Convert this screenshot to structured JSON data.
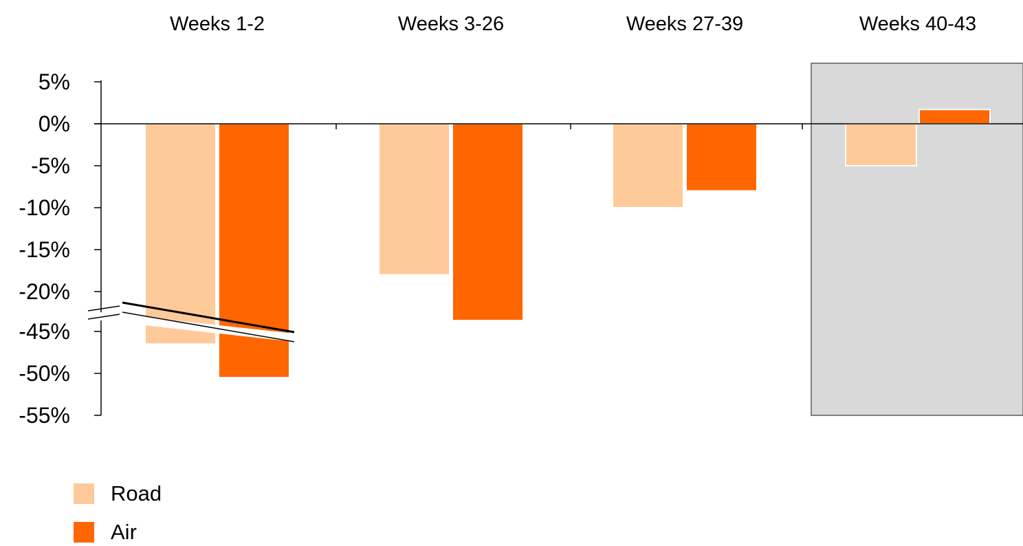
{
  "chart_data": {
    "type": "bar",
    "categories": [
      "Weeks 1-2",
      "Weeks 3-26",
      "Weeks 27-39",
      "Weeks 40-43"
    ],
    "series": [
      {
        "name": "Road",
        "values": [
          -46.5,
          -18,
          -10,
          -5
        ],
        "color": "#FFCA99"
      },
      {
        "name": "Air",
        "values": [
          -50.5,
          -43.7,
          -8,
          1.7
        ],
        "color": "#FF6600"
      }
    ],
    "y_ticks": [
      "5%",
      "0%",
      "-5%",
      "-10%",
      "-15%",
      "-20%",
      "-45%",
      "-50%",
      "-55%"
    ],
    "y_axis_break": {
      "from": -20,
      "to": -45
    },
    "ylim": [
      -55,
      5
    ],
    "highlighted_category": "Weeks 40-43",
    "highlight_color": "#D9D9D9",
    "title": "",
    "xlabel": "",
    "ylabel": "",
    "grid": false,
    "legend_position": "bottom-left"
  },
  "legend": {
    "items": [
      {
        "label": "Road",
        "color": "#FFCA99"
      },
      {
        "label": "Air",
        "color": "#FF6600"
      }
    ]
  }
}
